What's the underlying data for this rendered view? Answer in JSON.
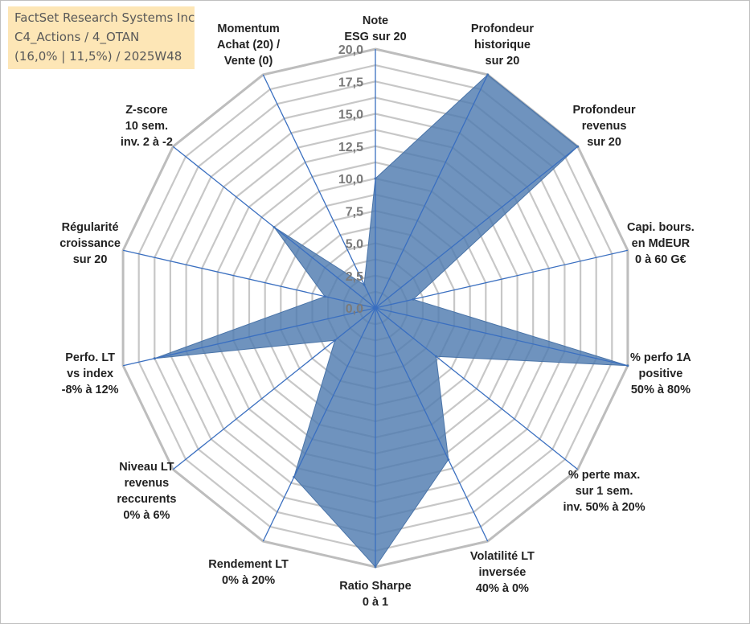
{
  "header": {
    "line1": "FactSet Research Systems Inc",
    "line2": "C4_Actions / 4_OTAN",
    "line3": "(16,0% | 11,5%) / 2025W48"
  },
  "chart_data": {
    "type": "radar",
    "title": "",
    "rlim": [
      0,
      20
    ],
    "ticks": [
      "0,0",
      "2,5",
      "5,0",
      "7,5",
      "10,0",
      "12,5",
      "15,0",
      "17,5",
      "20,0"
    ],
    "tick_values": [
      0,
      2.5,
      5,
      7.5,
      10,
      12.5,
      15,
      17.5,
      20
    ],
    "grid": true,
    "legend": "none",
    "categories": [
      [
        "Note",
        "ESG sur 20"
      ],
      [
        "Profondeur",
        "historique",
        "sur 20"
      ],
      [
        "Profondeur",
        "revenus",
        "sur 20"
      ],
      [
        "Capi. bours.",
        "en MdEUR",
        "0 à 60 G€"
      ],
      [
        "% perfo 1A",
        "positive",
        "50% à 80%"
      ],
      [
        "% perte max.",
        "sur 1 sem.",
        "inv. 50% à 20%"
      ],
      [
        "Volatilité LT",
        "inversée",
        "40% à 0%"
      ],
      [
        "Ratio Sharpe",
        "0 à 1"
      ],
      [
        "Rendement LT",
        "0% à 20%"
      ],
      [
        "Niveau LT",
        "revenus",
        "reccurents",
        "0% à 6%"
      ],
      [
        "Perfo. LT",
        "vs index",
        "-8% à 12%"
      ],
      [
        "Régularité",
        "croissance",
        "sur 20"
      ],
      [
        "Z-score",
        "10 sem.",
        "inv. 2 à -2"
      ],
      [
        "Momentum",
        "Achat (20) /",
        "Vente (0)"
      ]
    ],
    "series": [
      {
        "values": [
          10.0,
          20.0,
          20.0,
          3.0,
          20.0,
          6.0,
          13.0,
          20.0,
          14.5,
          4.0,
          17.5,
          4.0,
          10.0,
          2.0
        ]
      }
    ],
    "colors": {
      "fill": "#4f7bb0",
      "stroke": "#4a74a8",
      "spoke": "#3a6fc0",
      "grid": "#c7c7c7",
      "grid_outer": "#bdbdbd"
    }
  }
}
